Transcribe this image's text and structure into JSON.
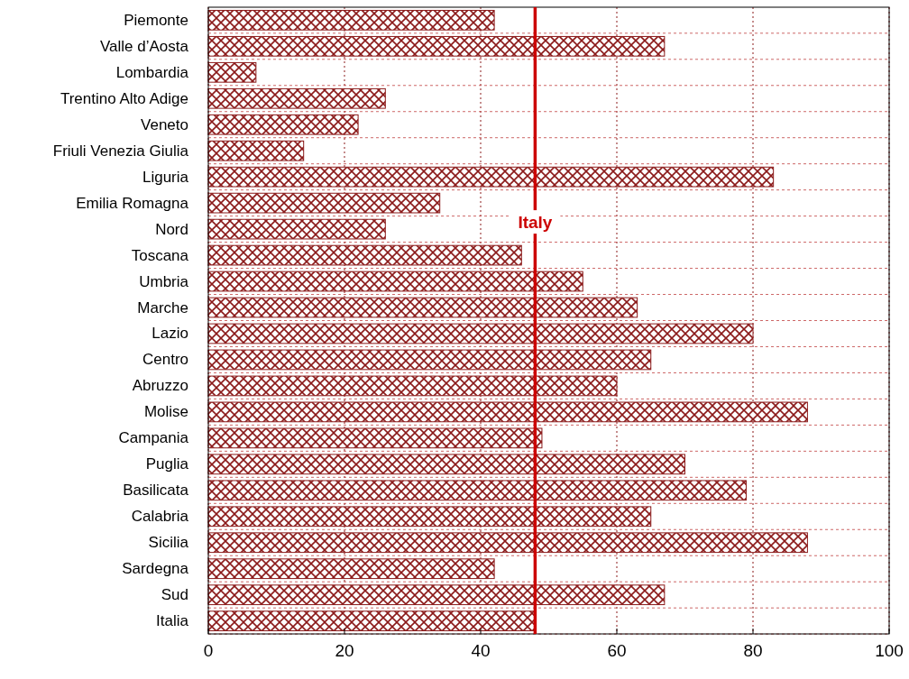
{
  "chart_data": {
    "type": "bar",
    "orientation": "horizontal",
    "categories": [
      "Piemonte",
      "Valle d’Aosta",
      "Lombardia",
      "Trentino Alto Adige",
      "Veneto",
      "Friuli Venezia Giulia",
      "Liguria",
      "Emilia Romagna",
      "Nord",
      "Toscana",
      "Umbria",
      "Marche",
      "Lazio",
      "Centro",
      "Abruzzo",
      "Molise",
      "Campania",
      "Puglia",
      "Basilicata",
      "Calabria",
      "Sicilia",
      "Sardegna",
      "Sud",
      "Italia"
    ],
    "values": [
      42,
      67,
      7,
      26,
      22,
      14,
      83,
      34,
      26,
      46,
      55,
      63,
      80,
      65,
      60,
      88,
      49,
      70,
      79,
      65,
      88,
      42,
      67,
      48
    ],
    "color": "#8b1a1a",
    "xlim": [
      0,
      100
    ],
    "xticks": [
      0,
      20,
      40,
      60,
      80,
      100
    ],
    "grid": true,
    "ref_lines": [
      {
        "axis": "x",
        "value": 48,
        "label": "Italy",
        "color": "#cc0000"
      }
    ]
  }
}
